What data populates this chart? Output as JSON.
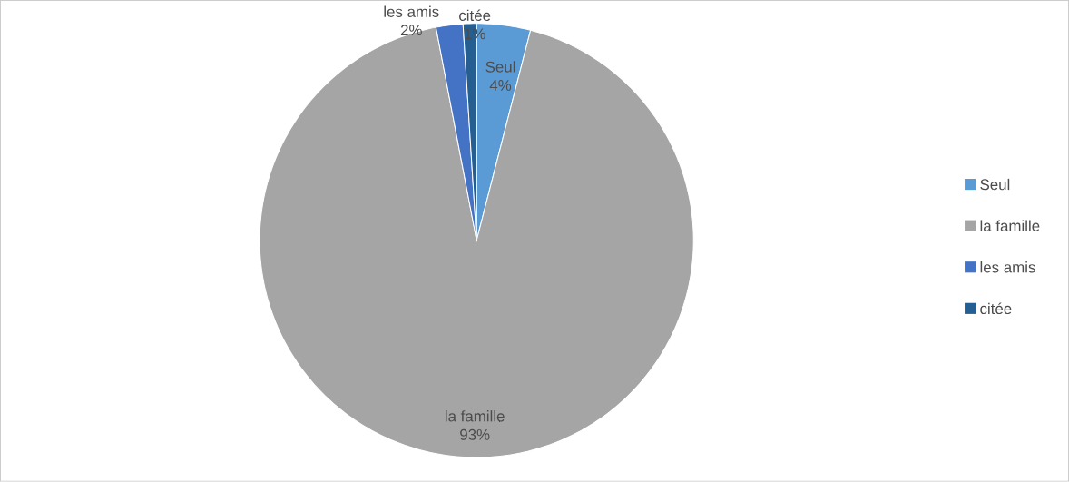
{
  "chart_data": {
    "type": "pie",
    "categories": [
      "Seul",
      "la famille",
      "les amis",
      "citée"
    ],
    "values": [
      4,
      93,
      2,
      1
    ],
    "value_labels": [
      "4%",
      "93%",
      "2%",
      "1%"
    ],
    "colors": [
      "#5b9bd5",
      "#a5a5a5",
      "#4472c4",
      "#255e91"
    ],
    "legend": "right"
  }
}
